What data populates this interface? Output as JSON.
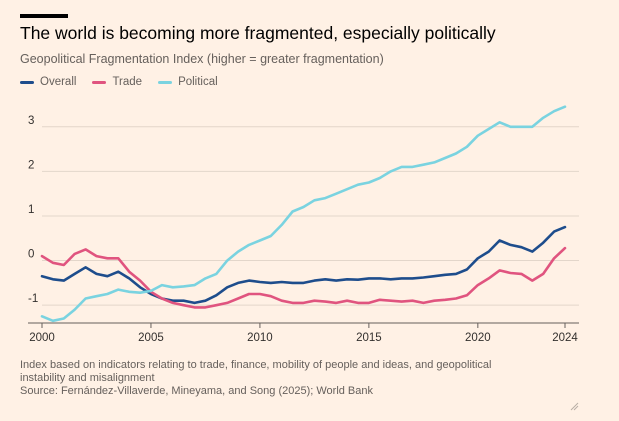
{
  "title": "The world is becoming more fragmented, especially politically",
  "subtitle": "Geopolitical Fragmentation Index (higher = greater fragmentation)",
  "note_line1": "Index based on indicators relating to trade, finance, mobility of people and ideas, and geopolitical",
  "note_line2": "instability and misalignment",
  "source": "Source: Fernández-Villaverde, Mineyama, and Song (2025); World Bank",
  "icons": [
    "resize-handle-icon"
  ],
  "chart_data": {
    "type": "line",
    "xlim": [
      2000,
      2024
    ],
    "ylim": [
      -1.4,
      3.6
    ],
    "x_ticks": [
      2000,
      2005,
      2010,
      2015,
      2020,
      2024
    ],
    "y_ticks": [
      -1,
      0,
      1,
      2,
      3
    ],
    "grid": true,
    "legend_position": "top-left",
    "series": [
      {
        "name": "Overall",
        "color": "#1e4d8c",
        "x": [
          2000,
          2000.5,
          2001,
          2001.5,
          2002,
          2002.5,
          2003,
          2003.5,
          2004,
          2004.5,
          2005,
          2005.5,
          2006,
          2006.5,
          2007,
          2007.5,
          2008,
          2008.5,
          2009,
          2009.5,
          2010,
          2010.5,
          2011,
          2011.5,
          2012,
          2012.5,
          2013,
          2013.5,
          2014,
          2014.5,
          2015,
          2015.5,
          2016,
          2016.5,
          2017,
          2017.5,
          2018,
          2018.5,
          2019,
          2019.5,
          2020,
          2020.5,
          2021,
          2021.5,
          2022,
          2022.5,
          2023,
          2023.5,
          2024
        ],
        "y": [
          -0.35,
          -0.42,
          -0.45,
          -0.3,
          -0.15,
          -0.3,
          -0.35,
          -0.25,
          -0.4,
          -0.6,
          -0.75,
          -0.85,
          -0.9,
          -0.9,
          -0.95,
          -0.9,
          -0.78,
          -0.6,
          -0.5,
          -0.45,
          -0.48,
          -0.5,
          -0.48,
          -0.5,
          -0.5,
          -0.45,
          -0.42,
          -0.45,
          -0.42,
          -0.43,
          -0.4,
          -0.4,
          -0.42,
          -0.4,
          -0.4,
          -0.38,
          -0.35,
          -0.32,
          -0.3,
          -0.2,
          0.05,
          0.2,
          0.45,
          0.35,
          0.3,
          0.2,
          0.4,
          0.65,
          0.75
        ]
      },
      {
        "name": "Trade",
        "color": "#e0547f",
        "x": [
          2000,
          2000.5,
          2001,
          2001.5,
          2002,
          2002.5,
          2003,
          2003.5,
          2004,
          2004.5,
          2005,
          2005.5,
          2006,
          2006.5,
          2007,
          2007.5,
          2008,
          2008.5,
          2009,
          2009.5,
          2010,
          2010.5,
          2011,
          2011.5,
          2012,
          2012.5,
          2013,
          2013.5,
          2014,
          2014.5,
          2015,
          2015.5,
          2016,
          2016.5,
          2017,
          2017.5,
          2018,
          2018.5,
          2019,
          2019.5,
          2020,
          2020.5,
          2021,
          2021.5,
          2022,
          2022.5,
          2023,
          2023.5,
          2024
        ],
        "y": [
          0.1,
          -0.05,
          -0.1,
          0.15,
          0.25,
          0.1,
          0.05,
          0.05,
          -0.25,
          -0.45,
          -0.7,
          -0.85,
          -0.95,
          -1.0,
          -1.05,
          -1.05,
          -1.0,
          -0.95,
          -0.85,
          -0.75,
          -0.75,
          -0.8,
          -0.9,
          -0.95,
          -0.95,
          -0.9,
          -0.92,
          -0.95,
          -0.9,
          -0.95,
          -0.95,
          -0.88,
          -0.9,
          -0.92,
          -0.9,
          -0.95,
          -0.9,
          -0.88,
          -0.85,
          -0.78,
          -0.55,
          -0.4,
          -0.22,
          -0.28,
          -0.3,
          -0.45,
          -0.3,
          0.05,
          0.28
        ]
      },
      {
        "name": "Political",
        "color": "#7ad3e0",
        "x": [
          2000,
          2000.5,
          2001,
          2001.5,
          2002,
          2002.5,
          2003,
          2003.5,
          2004,
          2004.5,
          2005,
          2005.5,
          2006,
          2006.5,
          2007,
          2007.5,
          2008,
          2008.5,
          2009,
          2009.5,
          2010,
          2010.5,
          2011,
          2011.5,
          2012,
          2012.5,
          2013,
          2013.5,
          2014,
          2014.5,
          2015,
          2015.5,
          2016,
          2016.5,
          2017,
          2017.5,
          2018,
          2018.5,
          2019,
          2019.5,
          2020,
          2020.5,
          2021,
          2021.5,
          2022,
          2022.5,
          2023,
          2023.5,
          2024
        ],
        "y": [
          -1.25,
          -1.35,
          -1.3,
          -1.1,
          -0.85,
          -0.8,
          -0.75,
          -0.65,
          -0.7,
          -0.72,
          -0.68,
          -0.55,
          -0.6,
          -0.58,
          -0.55,
          -0.4,
          -0.3,
          0.0,
          0.2,
          0.35,
          0.45,
          0.55,
          0.8,
          1.1,
          1.2,
          1.35,
          1.4,
          1.5,
          1.6,
          1.7,
          1.75,
          1.85,
          2.0,
          2.1,
          2.1,
          2.15,
          2.2,
          2.3,
          2.4,
          2.55,
          2.8,
          2.95,
          3.1,
          3.0,
          3.0,
          3.0,
          3.2,
          3.35,
          3.45
        ]
      }
    ]
  }
}
